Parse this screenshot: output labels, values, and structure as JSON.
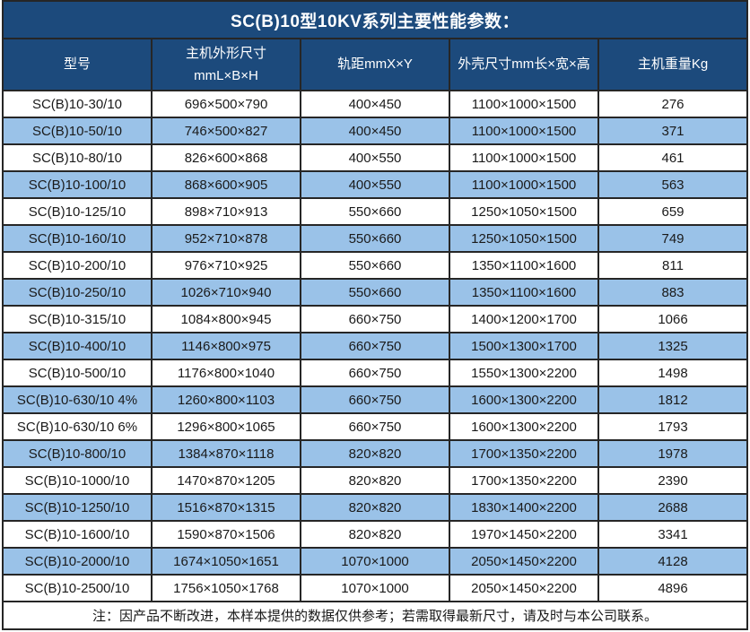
{
  "title": "SC(B)10型10KV系列主要性能参数：",
  "colors": {
    "header_bg": "#1c4a7c",
    "row_alt_bg": "#9ac2e8",
    "border": "#262626",
    "text": "#1a1a1a",
    "header_text": "#ffffff"
  },
  "table": {
    "column_keys": [
      "model",
      "main-dimensions",
      "rail-distance",
      "shell-size",
      "weight"
    ],
    "columns": [
      {
        "label": "型号",
        "sub": ""
      },
      {
        "label": "主机外形尺寸",
        "sub": "mmL×B×H"
      },
      {
        "label": "轨距mmX×Y",
        "sub": ""
      },
      {
        "label": "外壳尺寸mm长×宽×高",
        "sub": ""
      },
      {
        "label": "主机重量Kg",
        "sub": ""
      }
    ],
    "rows": [
      [
        "SC(B)10-30/10",
        "696×500×790",
        "400×450",
        "1100×1000×1500",
        "276"
      ],
      [
        "SC(B)10-50/10",
        "746×500×827",
        "400×450",
        "1100×1000×1500",
        "371"
      ],
      [
        "SC(B)10-80/10",
        "826×600×868",
        "400×550",
        "1100×1000×1500",
        "461"
      ],
      [
        "SC(B)10-100/10",
        "868×600×905",
        "400×550",
        "1100×1000×1500",
        "563"
      ],
      [
        "SC(B)10-125/10",
        "898×710×913",
        "550×660",
        "1250×1050×1500",
        "659"
      ],
      [
        "SC(B)10-160/10",
        "952×710×878",
        "550×660",
        "1250×1050×1500",
        "749"
      ],
      [
        "SC(B)10-200/10",
        "976×710×925",
        "550×660",
        "1350×1100×1600",
        "811"
      ],
      [
        "SC(B)10-250/10",
        "1026×710×940",
        "550×660",
        "1350×1100×1600",
        "883"
      ],
      [
        "SC(B)10-315/10",
        "1084×800×945",
        "660×750",
        "1400×1200×1700",
        "1066"
      ],
      [
        "SC(B)10-400/10",
        "1146×800×975",
        "660×750",
        "1500×1300×1700",
        "1325"
      ],
      [
        "SC(B)10-500/10",
        "1176×800×1040",
        "660×750",
        "1550×1300×2200",
        "1498"
      ],
      [
        "SC(B)10-630/10 4%",
        "1260×800×1103",
        "660×750",
        "1600×1300×2200",
        "1812"
      ],
      [
        "SC(B)10-630/10 6%",
        "1296×800×1065",
        "660×750",
        "1600×1300×2200",
        "1793"
      ],
      [
        "SC(B)10-800/10",
        "1384×870×1118",
        "820×820",
        "1700×1350×2200",
        "1978"
      ],
      [
        "SC(B)10-1000/10",
        "1470×870×1205",
        "820×820",
        "1700×1350×2200",
        "2390"
      ],
      [
        "SC(B)10-1250/10",
        "1516×870×1315",
        "820×820",
        "1830×1400×2200",
        "2688"
      ],
      [
        "SC(B)10-1600/10",
        "1590×870×1506",
        "820×820",
        "1970×1450×2200",
        "3341"
      ],
      [
        "SC(B)10-2000/10",
        "1674×1050×1651",
        "1070×1000",
        "2050×1450×2200",
        "4128"
      ],
      [
        "SC(B)10-2500/10",
        "1756×1050×1768",
        "1070×1000",
        "2050×1450×2200",
        "4896"
      ]
    ]
  },
  "footer_note": "注：因产品不断改进，本样本提供的数据仅供参考；若需取得最新尺寸，请及时与本公司联系。"
}
